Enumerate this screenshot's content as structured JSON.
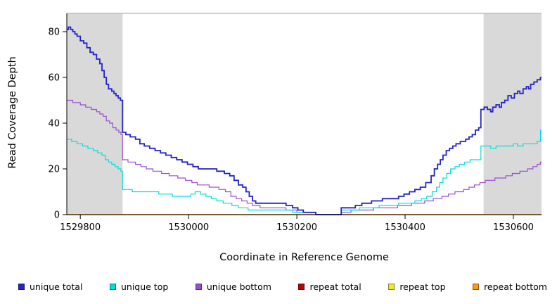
{
  "chart_data": {
    "type": "line",
    "title": "",
    "xlabel": "Coordinate in Reference Genome",
    "ylabel": "Read Coverage Depth",
    "xlim": [
      1529775,
      1530652
    ],
    "ylim": [
      0,
      88
    ],
    "xticks": [
      1529800,
      1530000,
      1530200,
      1530400,
      1530600
    ],
    "yticks": [
      0,
      20,
      40,
      60,
      80
    ],
    "grid": false,
    "legend_position": "bottom",
    "plot_bg": "#ffffff",
    "shaded_region_color": "#d9d9d9",
    "top_border_color": "#bdbdbd",
    "axis_color": "#000000",
    "shaded_regions": [
      {
        "x0": 1529775,
        "x1": 1529878
      },
      {
        "x0": 1530545,
        "x1": 1530652
      }
    ],
    "draw_order": [
      3,
      4,
      5,
      2,
      1,
      0
    ],
    "series": [
      {
        "name": "unique total",
        "color": "#2323c8",
        "width": 1.8,
        "points": [
          [
            1529775,
            81
          ],
          [
            1529778,
            82
          ],
          [
            1529782,
            81
          ],
          [
            1529786,
            80
          ],
          [
            1529790,
            79
          ],
          [
            1529794,
            78
          ],
          [
            1529800,
            76
          ],
          [
            1529806,
            75
          ],
          [
            1529812,
            73
          ],
          [
            1529818,
            71
          ],
          [
            1529824,
            70
          ],
          [
            1529830,
            68
          ],
          [
            1529836,
            66
          ],
          [
            1529840,
            63
          ],
          [
            1529844,
            60
          ],
          [
            1529848,
            57
          ],
          [
            1529852,
            55
          ],
          [
            1529858,
            54
          ],
          [
            1529862,
            53
          ],
          [
            1529866,
            52
          ],
          [
            1529870,
            51
          ],
          [
            1529874,
            50
          ],
          [
            1529878,
            36
          ],
          [
            1529884,
            35
          ],
          [
            1529892,
            34
          ],
          [
            1529902,
            33
          ],
          [
            1529910,
            31
          ],
          [
            1529918,
            30
          ],
          [
            1529928,
            29
          ],
          [
            1529938,
            28
          ],
          [
            1529948,
            27
          ],
          [
            1529958,
            26
          ],
          [
            1529968,
            25
          ],
          [
            1529978,
            24
          ],
          [
            1529988,
            23
          ],
          [
            1529998,
            22
          ],
          [
            1530008,
            21
          ],
          [
            1530018,
            20
          ],
          [
            1530040,
            20
          ],
          [
            1530052,
            19
          ],
          [
            1530066,
            18
          ],
          [
            1530076,
            17
          ],
          [
            1530084,
            15
          ],
          [
            1530092,
            13
          ],
          [
            1530100,
            12
          ],
          [
            1530106,
            10
          ],
          [
            1530112,
            8
          ],
          [
            1530118,
            6
          ],
          [
            1530124,
            5
          ],
          [
            1530160,
            5
          ],
          [
            1530180,
            4
          ],
          [
            1530192,
            3
          ],
          [
            1530202,
            2
          ],
          [
            1530212,
            1
          ],
          [
            1530235,
            0
          ],
          [
            1530282,
            3
          ],
          [
            1530308,
            4
          ],
          [
            1530320,
            5
          ],
          [
            1530338,
            6
          ],
          [
            1530358,
            7
          ],
          [
            1530388,
            8
          ],
          [
            1530398,
            9
          ],
          [
            1530408,
            10
          ],
          [
            1530418,
            11
          ],
          [
            1530428,
            12
          ],
          [
            1530438,
            14
          ],
          [
            1530448,
            17
          ],
          [
            1530454,
            20
          ],
          [
            1530460,
            22
          ],
          [
            1530465,
            24
          ],
          [
            1530470,
            26
          ],
          [
            1530476,
            28
          ],
          [
            1530482,
            29
          ],
          [
            1530488,
            30
          ],
          [
            1530494,
            31
          ],
          [
            1530502,
            32
          ],
          [
            1530512,
            33
          ],
          [
            1530518,
            34
          ],
          [
            1530524,
            35
          ],
          [
            1530530,
            37
          ],
          [
            1530536,
            38
          ],
          [
            1530540,
            46
          ],
          [
            1530546,
            47
          ],
          [
            1530552,
            46
          ],
          [
            1530558,
            45
          ],
          [
            1530562,
            47
          ],
          [
            1530568,
            48
          ],
          [
            1530574,
            47
          ],
          [
            1530578,
            49
          ],
          [
            1530584,
            50
          ],
          [
            1530590,
            52
          ],
          [
            1530596,
            51
          ],
          [
            1530602,
            53
          ],
          [
            1530608,
            54
          ],
          [
            1530612,
            53
          ],
          [
            1530618,
            55
          ],
          [
            1530624,
            56
          ],
          [
            1530628,
            55
          ],
          [
            1530632,
            57
          ],
          [
            1530638,
            58
          ],
          [
            1530644,
            59
          ],
          [
            1530650,
            60
          ]
        ]
      },
      {
        "name": "unique top",
        "color": "#00dede",
        "width": 1.2,
        "points": [
          [
            1529775,
            33
          ],
          [
            1529784,
            32
          ],
          [
            1529794,
            31
          ],
          [
            1529804,
            30
          ],
          [
            1529814,
            29
          ],
          [
            1529824,
            28
          ],
          [
            1529832,
            27
          ],
          [
            1529840,
            26
          ],
          [
            1529846,
            24
          ],
          [
            1529852,
            23
          ],
          [
            1529858,
            22
          ],
          [
            1529864,
            21
          ],
          [
            1529870,
            20
          ],
          [
            1529875,
            19
          ],
          [
            1529878,
            11
          ],
          [
            1529896,
            10
          ],
          [
            1529930,
            10
          ],
          [
            1529945,
            9
          ],
          [
            1529970,
            8
          ],
          [
            1530004,
            9
          ],
          [
            1530012,
            10
          ],
          [
            1530022,
            9
          ],
          [
            1530032,
            8
          ],
          [
            1530042,
            7
          ],
          [
            1530052,
            6
          ],
          [
            1530064,
            5
          ],
          [
            1530080,
            4
          ],
          [
            1530092,
            3
          ],
          [
            1530110,
            2
          ],
          [
            1530170,
            2
          ],
          [
            1530192,
            1
          ],
          [
            1530235,
            0
          ],
          [
            1530282,
            2
          ],
          [
            1530315,
            3
          ],
          [
            1530352,
            4
          ],
          [
            1530388,
            5
          ],
          [
            1530418,
            6
          ],
          [
            1530430,
            7
          ],
          [
            1530440,
            8
          ],
          [
            1530450,
            10
          ],
          [
            1530458,
            12
          ],
          [
            1530464,
            14
          ],
          [
            1530470,
            16
          ],
          [
            1530477,
            18
          ],
          [
            1530484,
            20
          ],
          [
            1530492,
            21
          ],
          [
            1530500,
            22
          ],
          [
            1530510,
            23
          ],
          [
            1530520,
            24
          ],
          [
            1530540,
            30
          ],
          [
            1530558,
            29
          ],
          [
            1530568,
            30
          ],
          [
            1530600,
            31
          ],
          [
            1530608,
            30
          ],
          [
            1530618,
            31
          ],
          [
            1530644,
            32
          ],
          [
            1530650,
            37
          ]
        ]
      },
      {
        "name": "unique bottom",
        "color": "#9a4fd0",
        "width": 1.2,
        "points": [
          [
            1529775,
            50
          ],
          [
            1529786,
            49
          ],
          [
            1529800,
            48
          ],
          [
            1529810,
            47
          ],
          [
            1529820,
            46
          ],
          [
            1529830,
            45
          ],
          [
            1529836,
            44
          ],
          [
            1529842,
            43
          ],
          [
            1529848,
            41
          ],
          [
            1529854,
            40
          ],
          [
            1529860,
            38
          ],
          [
            1529866,
            37
          ],
          [
            1529871,
            36
          ],
          [
            1529875,
            35
          ],
          [
            1529878,
            24
          ],
          [
            1529888,
            23
          ],
          [
            1529902,
            22
          ],
          [
            1529912,
            21
          ],
          [
            1529922,
            20
          ],
          [
            1529934,
            19
          ],
          [
            1529950,
            18
          ],
          [
            1529964,
            17
          ],
          [
            1529980,
            16
          ],
          [
            1529994,
            15
          ],
          [
            1530006,
            14
          ],
          [
            1530016,
            13
          ],
          [
            1530038,
            12
          ],
          [
            1530056,
            11
          ],
          [
            1530068,
            10
          ],
          [
            1530078,
            8
          ],
          [
            1530088,
            7
          ],
          [
            1530098,
            6
          ],
          [
            1530108,
            5
          ],
          [
            1530118,
            4
          ],
          [
            1530132,
            3
          ],
          [
            1530180,
            2
          ],
          [
            1530200,
            1
          ],
          [
            1530235,
            0
          ],
          [
            1530282,
            1
          ],
          [
            1530300,
            2
          ],
          [
            1530342,
            3
          ],
          [
            1530386,
            4
          ],
          [
            1530412,
            5
          ],
          [
            1530436,
            6
          ],
          [
            1530452,
            7
          ],
          [
            1530468,
            8
          ],
          [
            1530480,
            9
          ],
          [
            1530492,
            10
          ],
          [
            1530508,
            11
          ],
          [
            1530518,
            12
          ],
          [
            1530528,
            13
          ],
          [
            1530538,
            14
          ],
          [
            1530548,
            15
          ],
          [
            1530566,
            16
          ],
          [
            1530586,
            17
          ],
          [
            1530598,
            18
          ],
          [
            1530612,
            19
          ],
          [
            1530626,
            20
          ],
          [
            1530636,
            21
          ],
          [
            1530644,
            22
          ],
          [
            1530650,
            23
          ]
        ]
      },
      {
        "name": "repeat total",
        "color": "#c00000",
        "width": 1.2,
        "points": [
          [
            1529775,
            0
          ],
          [
            1530652,
            0
          ]
        ]
      },
      {
        "name": "repeat top",
        "color": "#f0e62a",
        "width": 1.2,
        "points": [
          [
            1529775,
            0
          ],
          [
            1530652,
            0
          ]
        ]
      },
      {
        "name": "repeat bottom",
        "color": "#ff9912",
        "width": 1.2,
        "points": [
          [
            1529775,
            0
          ],
          [
            1530652,
            0
          ]
        ]
      }
    ]
  }
}
